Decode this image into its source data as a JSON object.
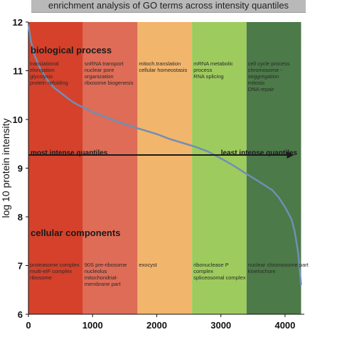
{
  "chart_data": {
    "type": "line",
    "title": "enrichment analysis of GO terms across intensity quantiles",
    "xlabel": "",
    "ylabel": "log 10 protein intensity",
    "xlim": [
      0,
      4300
    ],
    "ylim": [
      6,
      12
    ],
    "x_ticks": [
      "0",
      "1000",
      "2000",
      "3000",
      "4000"
    ],
    "y_ticks": [
      "6",
      "7",
      "8",
      "9",
      "10",
      "11",
      "12"
    ],
    "bands": [
      {
        "from": 0,
        "to": 850,
        "color": "#d5412b"
      },
      {
        "from": 850,
        "to": 1700,
        "color": "#de6c57"
      },
      {
        "from": 1700,
        "to": 2550,
        "color": "#f2b56c"
      },
      {
        "from": 2550,
        "to": 3400,
        "color": "#9ecb5d"
      },
      {
        "from": 3400,
        "to": 4250,
        "color": "#4c7a49"
      }
    ],
    "series": [
      {
        "color": "#6f8fb4",
        "points": [
          [
            0,
            11.95
          ],
          [
            40,
            11.6
          ],
          [
            100,
            11.3
          ],
          [
            200,
            11.0
          ],
          [
            300,
            10.8
          ],
          [
            400,
            10.65
          ],
          [
            500,
            10.55
          ],
          [
            600,
            10.45
          ],
          [
            700,
            10.35
          ],
          [
            800,
            10.28
          ],
          [
            900,
            10.22
          ],
          [
            1000,
            10.15
          ],
          [
            1200,
            10.05
          ],
          [
            1400,
            9.95
          ],
          [
            1600,
            9.86
          ],
          [
            1800,
            9.78
          ],
          [
            2000,
            9.7
          ],
          [
            2200,
            9.6
          ],
          [
            2400,
            9.52
          ],
          [
            2600,
            9.44
          ],
          [
            2800,
            9.34
          ],
          [
            3000,
            9.2
          ],
          [
            3200,
            9.05
          ],
          [
            3400,
            8.88
          ],
          [
            3600,
            8.72
          ],
          [
            3800,
            8.55
          ],
          [
            3900,
            8.4
          ],
          [
            4000,
            8.2
          ],
          [
            4100,
            7.95
          ],
          [
            4150,
            7.7
          ],
          [
            4200,
            7.3
          ],
          [
            4230,
            6.9
          ],
          [
            4250,
            6.6
          ]
        ]
      }
    ],
    "arrow": {
      "from_x": 0,
      "to_x": 4250,
      "y": 9.27
    },
    "annotations": {
      "bp_header": "biological process",
      "cc_header": "cellular components",
      "most_intense": "most intense quantiles",
      "least_intense": "least intense quantiles",
      "bp_terms": [
        [
          "translational",
          "elongation",
          "glycolysis",
          "protein refolding"
        ],
        [
          "snRNA transport",
          "nuclear pore",
          "organization",
          "ribosome biogenesis"
        ],
        [
          "mitoch.translation",
          "cellular homeostasis"
        ],
        [
          "mRNA metabolic",
          "process",
          "RNA splicing"
        ],
        [
          "cell cycle process",
          "chromosome -",
          "seggregation",
          "mitosis",
          "DNA repair"
        ]
      ],
      "cc_terms": [
        [
          "proteasome complex",
          "multi-eIF complex",
          "ribosome"
        ],
        [
          "90S  pre-ribosome",
          "nucleolus",
          "mitochondrial-",
          "membrane part"
        ],
        [
          "exocyst"
        ],
        [
          "ribonuclease P",
          "complex",
          "spliceosomal complex"
        ],
        [
          "nuclear chromosome part",
          "kinetochore"
        ]
      ]
    }
  }
}
